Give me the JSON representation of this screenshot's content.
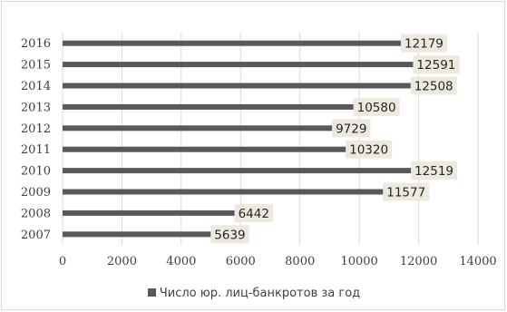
{
  "chart_data": {
    "type": "bar",
    "orientation": "horizontal",
    "categories": [
      "2016",
      "2015",
      "2014",
      "2013",
      "2012",
      "2011",
      "2010",
      "2009",
      "2008",
      "2007"
    ],
    "series": [
      {
        "name": "Число юр. лиц-банкротов за год",
        "values": [
          12179,
          12591,
          12508,
          10580,
          9729,
          10320,
          12519,
          11577,
          6442,
          5639
        ]
      }
    ],
    "xlim": [
      0,
      14000
    ],
    "xticks": [
      0,
      2000,
      4000,
      6000,
      8000,
      10000,
      12000,
      14000
    ],
    "grid": "vertical",
    "legend": "bottom",
    "bar_color": "#595959",
    "label_bg": "#ede9de"
  }
}
